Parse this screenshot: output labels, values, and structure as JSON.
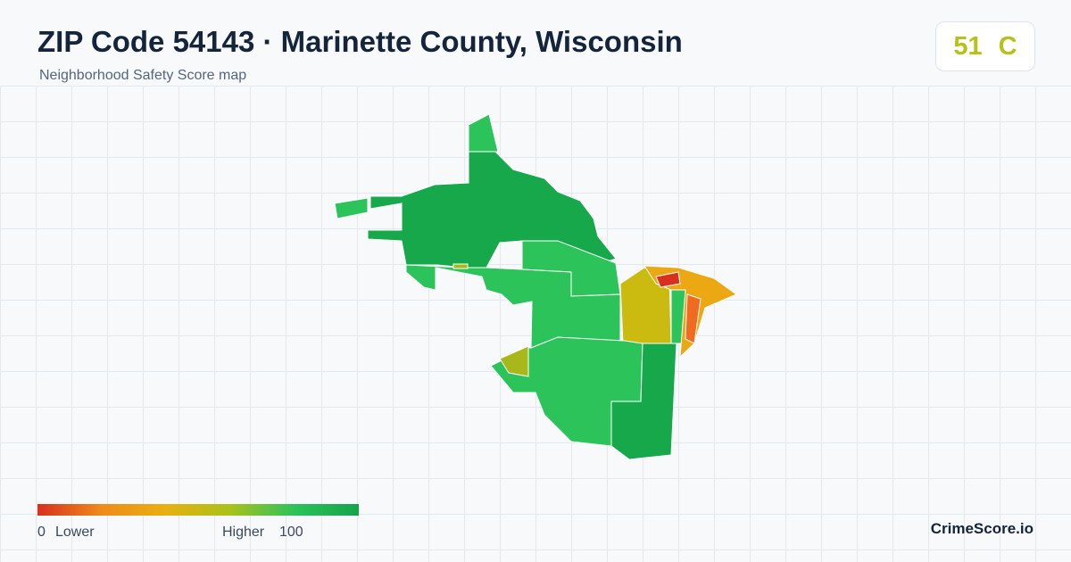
{
  "header": {
    "title": "ZIP Code 54143 · Marinette County, Wisconsin",
    "subtitle": "Neighborhood Safety Score map"
  },
  "badge": {
    "score": 51,
    "grade": "C"
  },
  "legend": {
    "min": 0,
    "min_label": "Lower",
    "max_label": "Higher",
    "max": 100
  },
  "footer": {
    "brand": "CrimeScore.io"
  }
}
